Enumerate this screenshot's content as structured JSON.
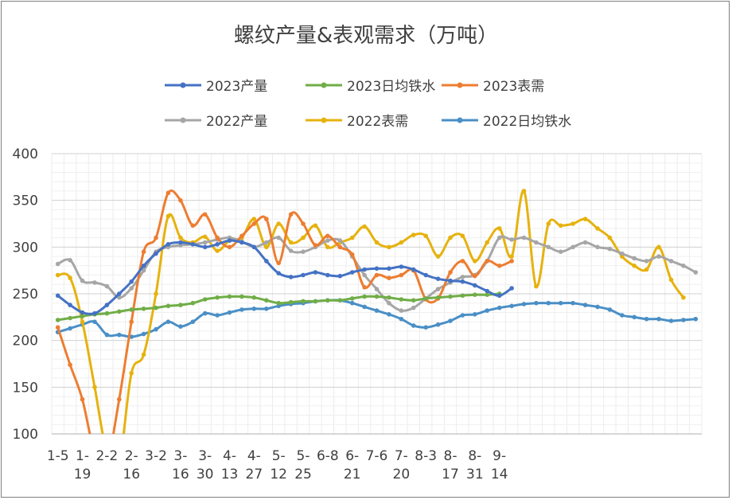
{
  "chart_data": {
    "type": "line",
    "title": "螺纹产量&表观需求（万吨）",
    "ylim": [
      100,
      400
    ],
    "yticks": [
      100,
      150,
      200,
      250,
      300,
      350,
      400
    ],
    "grid": true,
    "legend_position": "top",
    "x_count": 53,
    "x_tick_labels": [
      {
        "i": 0,
        "lines": [
          "1-5"
        ]
      },
      {
        "i": 2,
        "lines": [
          "1-",
          "19"
        ]
      },
      {
        "i": 4,
        "lines": [
          "2-2"
        ]
      },
      {
        "i": 6,
        "lines": [
          "2-",
          "16"
        ]
      },
      {
        "i": 8,
        "lines": [
          "3-2"
        ]
      },
      {
        "i": 10,
        "lines": [
          "3-",
          "16"
        ]
      },
      {
        "i": 12,
        "lines": [
          "3-",
          "30"
        ]
      },
      {
        "i": 14,
        "lines": [
          "4-",
          "13"
        ]
      },
      {
        "i": 16,
        "lines": [
          "4-",
          "27"
        ]
      },
      {
        "i": 18,
        "lines": [
          "5-",
          "12"
        ]
      },
      {
        "i": 20,
        "lines": [
          "5-",
          "25"
        ]
      },
      {
        "i": 22,
        "lines": [
          "6-8"
        ]
      },
      {
        "i": 24,
        "lines": [
          "6-",
          "21"
        ]
      },
      {
        "i": 26,
        "lines": [
          "7-6"
        ]
      },
      {
        "i": 28,
        "lines": [
          "7-",
          "20"
        ]
      },
      {
        "i": 30,
        "lines": [
          "8-3"
        ]
      },
      {
        "i": 32,
        "lines": [
          "8-",
          "17"
        ]
      },
      {
        "i": 34,
        "lines": [
          "8-",
          "31"
        ]
      },
      {
        "i": 36,
        "lines": [
          "9-",
          "14"
        ]
      }
    ],
    "series": [
      {
        "name": "2022日均铁水",
        "color": "#4a8fc6",
        "values": [
          209,
          213,
          217,
          220,
          206,
          206,
          204,
          207,
          212,
          220,
          215,
          220,
          229,
          227,
          230,
          233,
          234,
          234,
          237,
          239,
          240,
          242,
          243,
          243,
          240,
          236,
          232,
          228,
          223,
          216,
          214,
          217,
          221,
          227,
          228,
          232,
          235,
          237,
          239,
          240,
          240,
          240,
          240,
          238,
          236,
          233,
          227,
          225,
          223,
          223,
          221,
          222,
          223
        ]
      },
      {
        "name": "2022表需",
        "color": "#e6b20e",
        "values": [
          270,
          267,
          220,
          150,
          80,
          70,
          165,
          185,
          250,
          333,
          310,
          305,
          311,
          296,
          307,
          310,
          330,
          300,
          325,
          305,
          310,
          323,
          300,
          305,
          310,
          322,
          305,
          300,
          305,
          313,
          312,
          290,
          310,
          312,
          285,
          305,
          320,
          290,
          360,
          258,
          325,
          323,
          325,
          330,
          320,
          310,
          290,
          280,
          276,
          300,
          265,
          246,
          null
        ]
      },
      {
        "name": "2022产量",
        "color": "#a6a6a6",
        "values": [
          282,
          286,
          264,
          262,
          258,
          246,
          256,
          275,
          295,
          300,
          302,
          303,
          305,
          308,
          310,
          306,
          300,
          305,
          310,
          296,
          295,
          300,
          307,
          307,
          290,
          270,
          255,
          240,
          232,
          235,
          245,
          255,
          262,
          268,
          270,
          285,
          310,
          308,
          310,
          305,
          300,
          295,
          300,
          305,
          300,
          298,
          293,
          288,
          285,
          290,
          285,
          280,
          273
        ]
      },
      {
        "name": "2023表需",
        "color": "#ed7d31",
        "values": [
          214,
          174,
          137,
          80,
          70,
          137,
          220,
          295,
          310,
          358,
          350,
          323,
          335,
          310,
          300,
          312,
          325,
          330,
          283,
          335,
          325,
          302,
          312,
          300,
          292,
          257,
          270,
          267,
          270,
          275,
          244,
          245,
          273,
          285,
          269,
          285,
          280,
          285,
          null,
          null,
          null,
          null,
          null,
          null,
          null,
          null,
          null,
          null,
          null,
          null,
          null,
          null,
          null
        ]
      },
      {
        "name": "2023日均铁水",
        "color": "#70ad47",
        "values": [
          222,
          224,
          226,
          228,
          229,
          231,
          233,
          234,
          235,
          237,
          238,
          240,
          244,
          246,
          247,
          247,
          246,
          243,
          240,
          241,
          242,
          242,
          243,
          243,
          245,
          247,
          247,
          246,
          244,
          243,
          245,
          246,
          247,
          248,
          249,
          249,
          250,
          null,
          null,
          null,
          null,
          null,
          null,
          null,
          null,
          null,
          null,
          null,
          null,
          null,
          null,
          null,
          null
        ]
      },
      {
        "name": "2023产量",
        "color": "#4472c4",
        "values": [
          248,
          238,
          230,
          229,
          238,
          250,
          263,
          280,
          293,
          303,
          305,
          303,
          300,
          303,
          307,
          305,
          300,
          285,
          272,
          268,
          270,
          273,
          270,
          269,
          273,
          276,
          277,
          277,
          279,
          276,
          270,
          266,
          264,
          263,
          259,
          253,
          248,
          256,
          null,
          null,
          null,
          null,
          null,
          null,
          null,
          null,
          null,
          null,
          null,
          null,
          null,
          null,
          null
        ]
      }
    ]
  },
  "legend": {
    "row1": [
      "2023产量",
      "2023日均铁水",
      "2023表需"
    ],
    "row2": [
      "2022产量",
      "2022表需",
      "2022日均铁水"
    ],
    "row1_colors": [
      "#4472c4",
      "#70ad47",
      "#ed7d31"
    ],
    "row2_colors": [
      "#a6a6a6",
      "#e6b20e",
      "#4a8fc6"
    ]
  }
}
